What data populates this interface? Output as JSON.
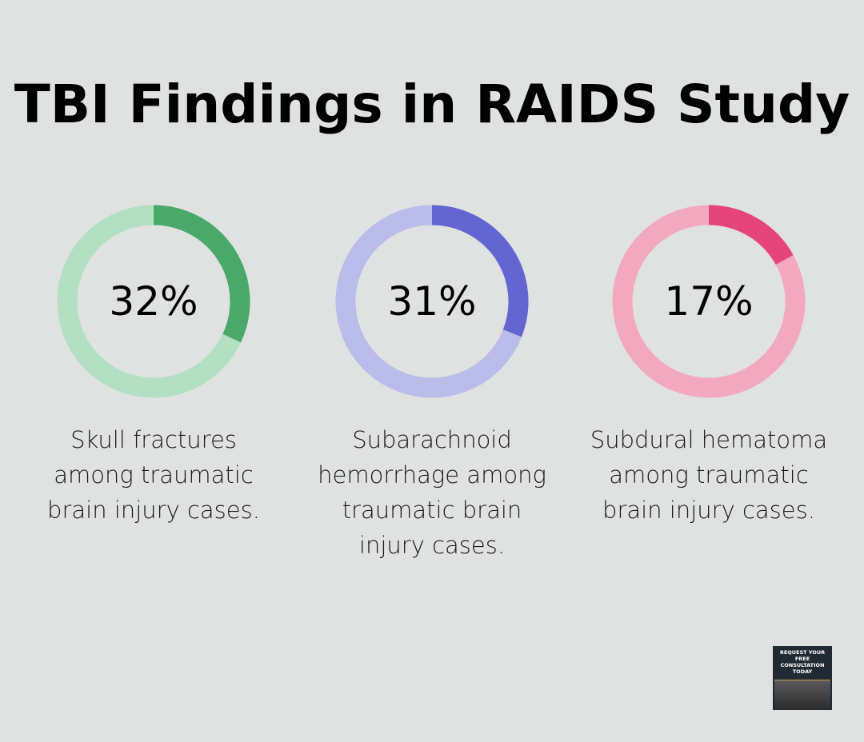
{
  "title": "TBI Findings in RAIDS Study",
  "chart_data": [
    {
      "type": "donut",
      "values": [
        32
      ],
      "value_labels": [
        "32%"
      ],
      "caption": "Skull fractures among traumatic brain injury cases.",
      "color": "#4aa86b",
      "track_color": "#b3dfc3"
    },
    {
      "type": "donut",
      "values": [
        31
      ],
      "value_labels": [
        "31%"
      ],
      "caption": "Subarachnoid hemorrhage among traumatic brain injury cases.",
      "color": "#6366d1",
      "track_color": "#babcea"
    },
    {
      "type": "donut",
      "values": [
        17
      ],
      "value_labels": [
        "17%"
      ],
      "caption": "Subdural hematoma among traumatic brain injury cases.",
      "color": "#e5457a",
      "track_color": "#f2a9c0"
    }
  ],
  "badge": "REQUEST YOUR FREE CONSULTATION TODAY"
}
